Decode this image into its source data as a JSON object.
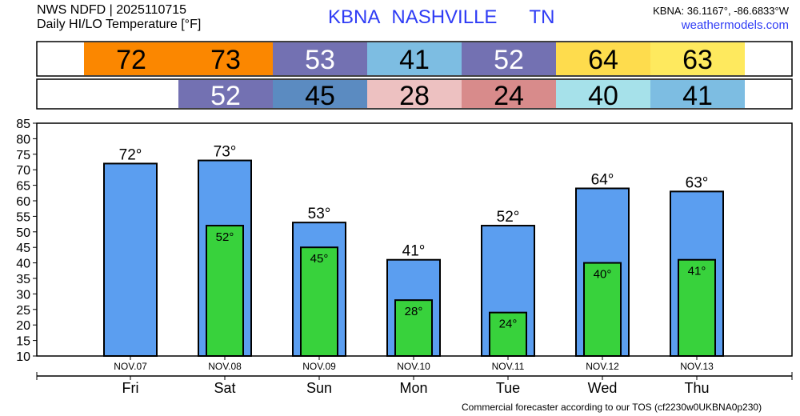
{
  "header": {
    "line1": "NWS NDFD | 2025110715",
    "line2": "Daily HI/LO Temperature [°F]",
    "station": "KBNA",
    "city": "NASHVILLE",
    "state": "TN",
    "coords": "KBNA: 36.1167°, -86.6833°W",
    "site": "weathermodels.com"
  },
  "footer": "Commercial forecaster according to our TOS (cf2230w0UKBNA0p230)",
  "strips": {
    "highs": [
      {
        "v": "72",
        "bg": "#fb8700",
        "fg": "#000"
      },
      {
        "v": "73",
        "bg": "#fb8700",
        "fg": "#000"
      },
      {
        "v": "53",
        "bg": "#7371b2",
        "fg": "#fff"
      },
      {
        "v": "41",
        "bg": "#7dbde2",
        "fg": "#000"
      },
      {
        "v": "52",
        "bg": "#7371b2",
        "fg": "#fff"
      },
      {
        "v": "64",
        "bg": "#fedc4d",
        "fg": "#000"
      },
      {
        "v": "63",
        "bg": "#fee95e",
        "fg": "#000"
      }
    ],
    "lows": [
      {
        "v": "52",
        "bg": "#7371b2",
        "fg": "#fff"
      },
      {
        "v": "45",
        "bg": "#5b8bc1",
        "fg": "#000"
      },
      {
        "v": "28",
        "bg": "#edc1c1",
        "fg": "#000"
      },
      {
        "v": "24",
        "bg": "#d88b8b",
        "fg": "#000"
      },
      {
        "v": "40",
        "bg": "#a6e1ea",
        "fg": "#000"
      },
      {
        "v": "41",
        "bg": "#7dbde2",
        "fg": "#000"
      }
    ]
  },
  "chart_data": {
    "type": "bar",
    "categories": [
      "Fri",
      "Sat",
      "Sun",
      "Mon",
      "Tue",
      "Wed",
      "Thu"
    ],
    "dates": [
      "NOV.07",
      "NOV.08",
      "NOV.09",
      "NOV.10",
      "NOV.11",
      "NOV.12",
      "NOV.13"
    ],
    "series": [
      {
        "name": "High",
        "color": "#5b9ef0",
        "values": [
          72,
          73,
          53,
          41,
          52,
          64,
          63
        ]
      },
      {
        "name": "Low",
        "color": "#38d23c",
        "values": [
          null,
          52,
          45,
          28,
          24,
          40,
          41
        ]
      }
    ],
    "yticks": [
      10,
      15,
      20,
      25,
      30,
      35,
      40,
      45,
      50,
      55,
      60,
      65,
      70,
      75,
      80,
      85
    ],
    "ylim": [
      10,
      85
    ]
  }
}
